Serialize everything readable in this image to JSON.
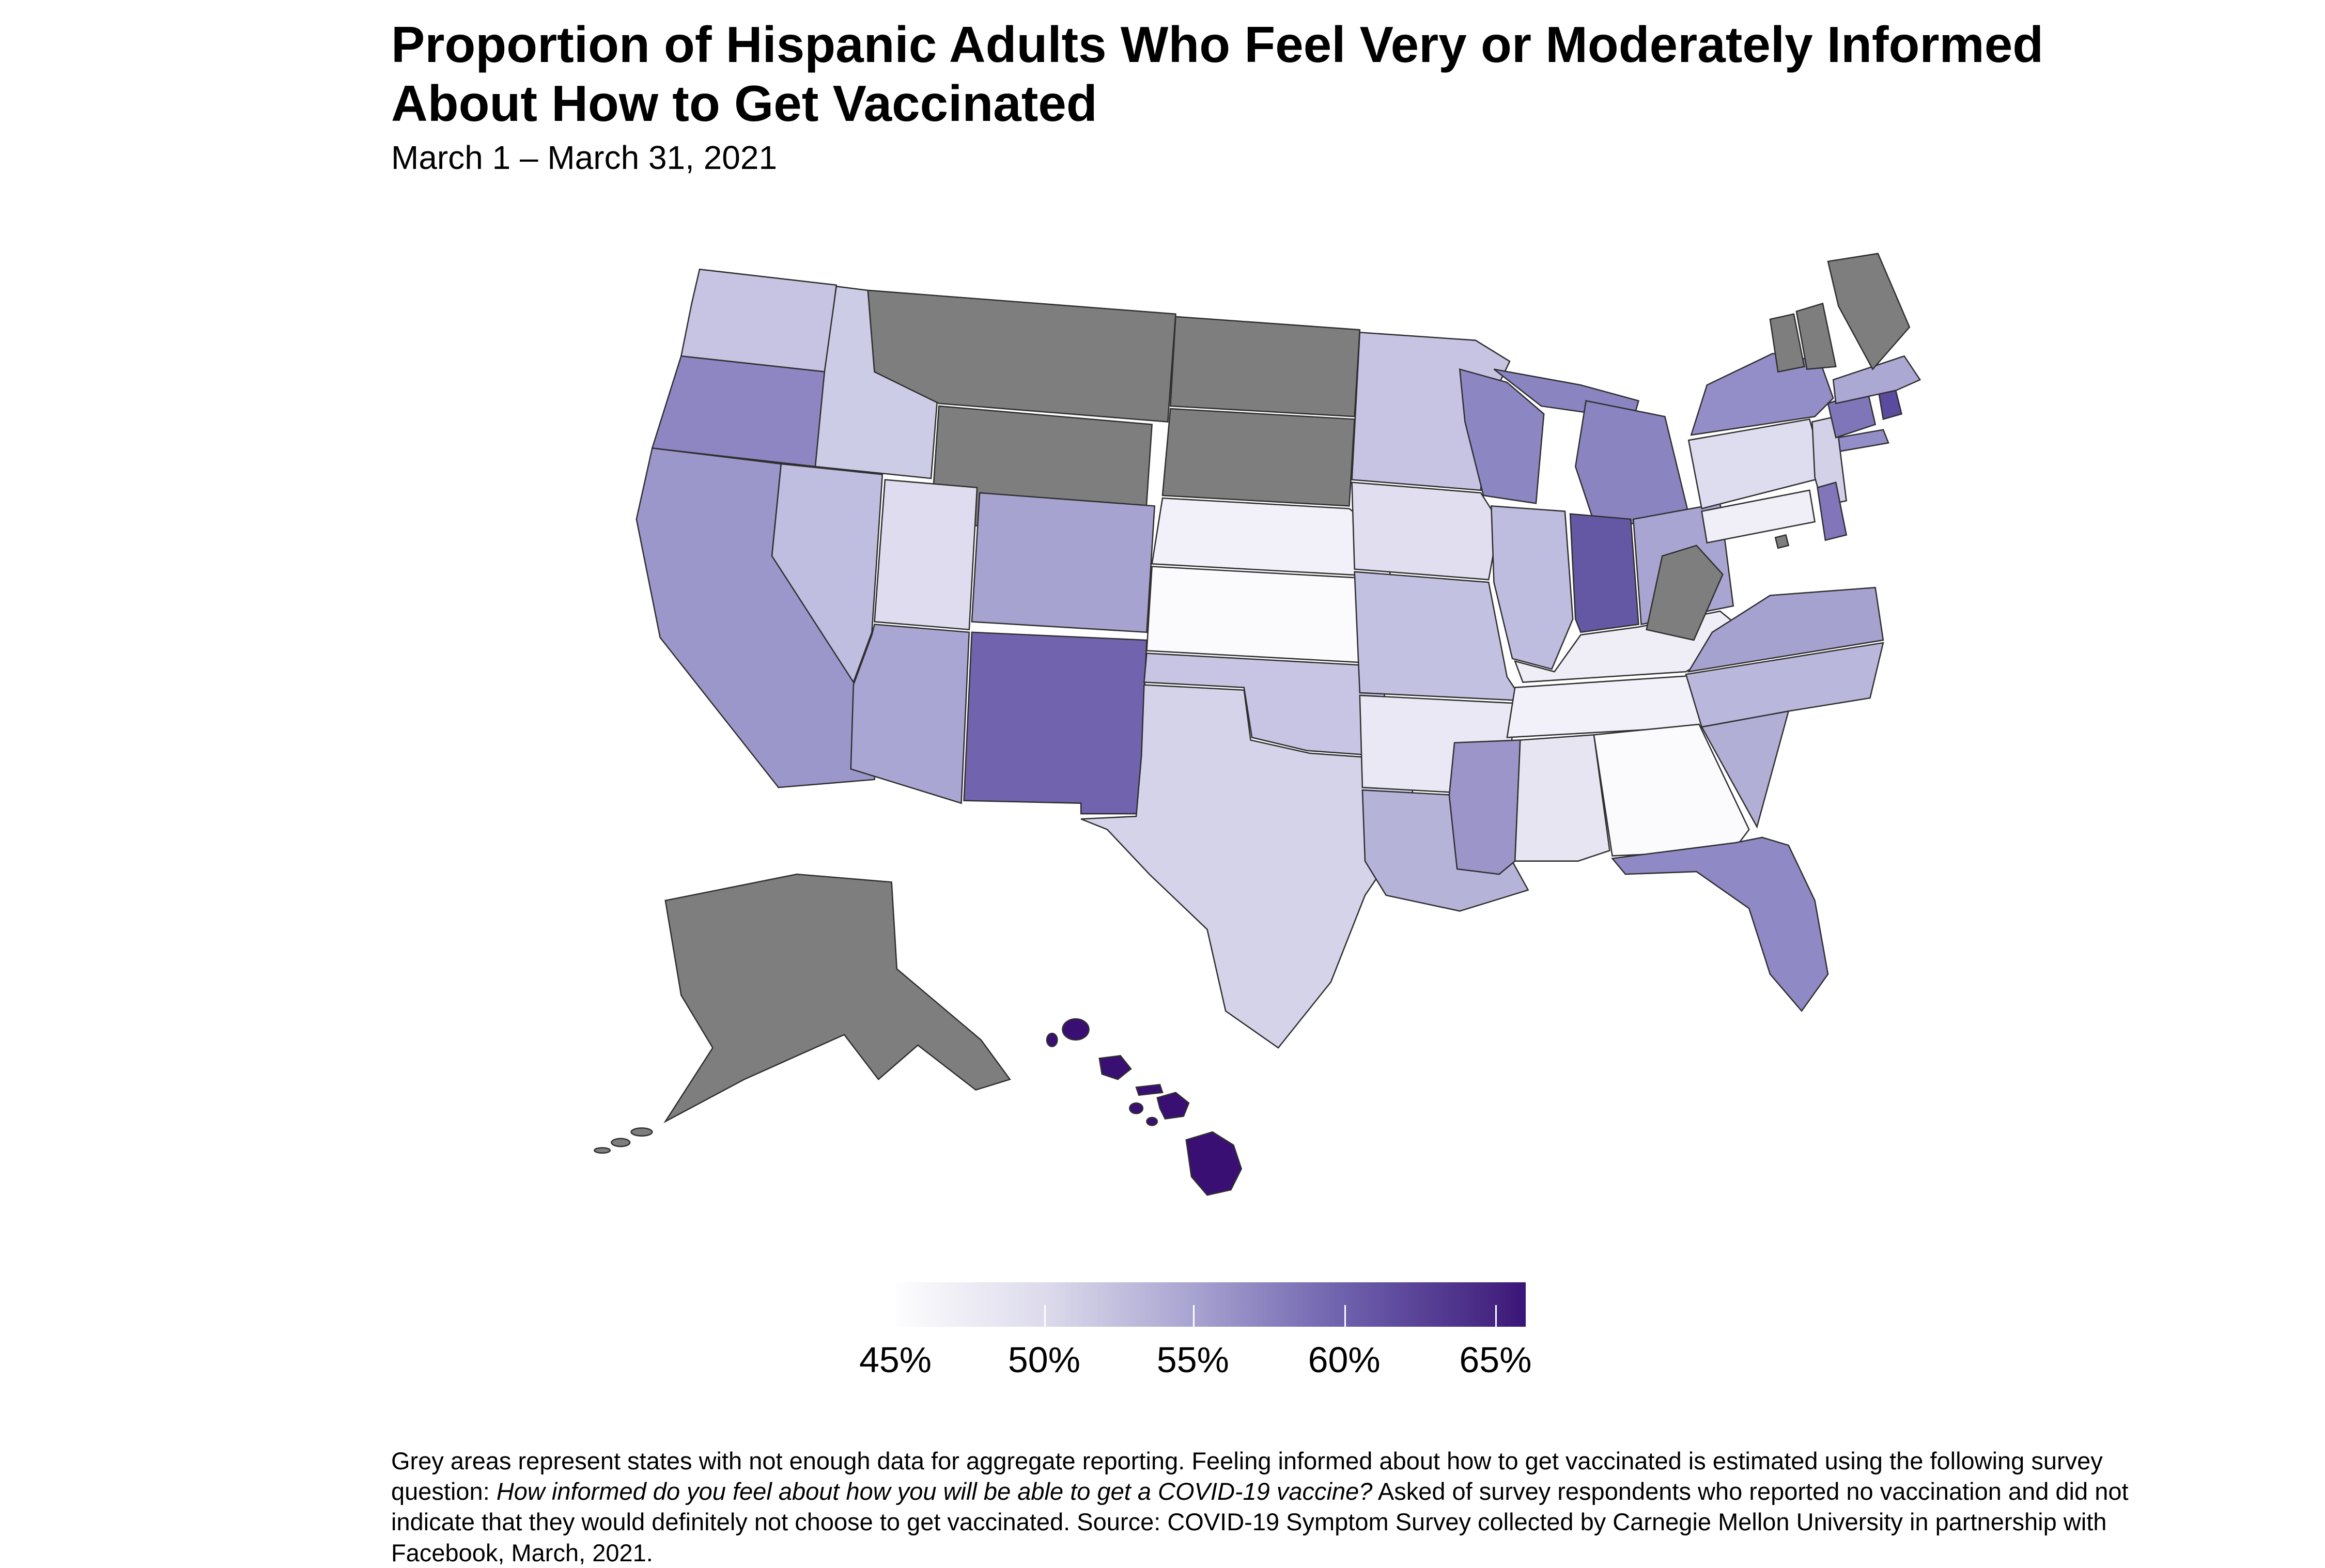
{
  "title": {
    "line1": "Proportion of Hispanic Adults Who Feel Very or Moderately Informed",
    "line2": "About How to Get Vaccinated"
  },
  "subtitle": "March 1 – March 31, 2021",
  "legend": {
    "ticks": [
      {
        "label": "45%",
        "pos": 0.0
      },
      {
        "label": "50%",
        "pos": 0.236
      },
      {
        "label": "55%",
        "pos": 0.472
      },
      {
        "label": "60%",
        "pos": 0.712
      },
      {
        "label": "65%",
        "pos": 0.952
      }
    ],
    "gradient_stops": [
      [
        0,
        "#fdfdfe"
      ],
      [
        0.24,
        "#dcdaeb"
      ],
      [
        0.47,
        "#a8a4d1"
      ],
      [
        0.71,
        "#6e61ad"
      ],
      [
        0.95,
        "#452581"
      ],
      [
        1,
        "#3a1478"
      ]
    ]
  },
  "footnote": {
    "part1": "Grey areas represent states with not enough data for aggregate reporting. Feeling informed about how to get vaccinated is estimated using the following survey question: ",
    "part2_italic": "How informed do you feel about how you will be able to get a COVID-19 vaccine?",
    "part3": " Asked of survey respondents who reported no vaccination and did not indicate that they would definitely not choose to get vaccinated. Source: COVID-19 Symptom Survey collected by Carnegie Mellon University in partnership with Facebook, March, 2021."
  },
  "chart_data": {
    "type": "choropleth",
    "geography": "United States (states)",
    "title": "Proportion of Hispanic Adults Who Feel Very or Moderately Informed About How to Get Vaccinated",
    "period": "March 1 – March 31, 2021",
    "unit": "%",
    "scale": {
      "min": 45,
      "max": 66,
      "tick_labels": [
        "45%",
        "50%",
        "55%",
        "60%",
        "65%"
      ]
    },
    "no_data_color": "#7e7e7e",
    "border_color": "#2f2f2f",
    "states": [
      {
        "abbr": "WA",
        "name": "Washington",
        "value": 51,
        "fill": "#c6c4e2"
      },
      {
        "abbr": "OR",
        "name": "Oregon",
        "value": 57,
        "fill": "#8d86c3"
      },
      {
        "abbr": "CA",
        "name": "California",
        "value": 55.5,
        "fill": "#9c97cb"
      },
      {
        "abbr": "NV",
        "name": "Nevada",
        "value": 52,
        "fill": "#bfbde0"
      },
      {
        "abbr": "ID",
        "name": "Idaho",
        "value": 50.5,
        "fill": "#cdcce6"
      },
      {
        "abbr": "UT",
        "name": "Utah",
        "value": 48.5,
        "fill": "#dedcee"
      },
      {
        "abbr": "AZ",
        "name": "Arizona",
        "value": 54.5,
        "fill": "#aaa6d3"
      },
      {
        "abbr": "NM",
        "name": "New Mexico",
        "value": 60,
        "fill": "#7163ae"
      },
      {
        "abbr": "CO",
        "name": "Colorado",
        "value": 54.5,
        "fill": "#a7a3d1"
      },
      {
        "abbr": "MT",
        "name": "Montana",
        "value": null,
        "fill": "#7e7e7e"
      },
      {
        "abbr": "WY",
        "name": "Wyoming",
        "value": null,
        "fill": "#7e7e7e"
      },
      {
        "abbr": "ND",
        "name": "North Dakota",
        "value": null,
        "fill": "#7e7e7e"
      },
      {
        "abbr": "SD",
        "name": "South Dakota",
        "value": null,
        "fill": "#7e7e7e"
      },
      {
        "abbr": "NE",
        "name": "Nebraska",
        "value": 46,
        "fill": "#f2f1f9"
      },
      {
        "abbr": "KS",
        "name": "Kansas",
        "value": 45,
        "fill": "#fbfafd"
      },
      {
        "abbr": "OK",
        "name": "Oklahoma",
        "value": 51,
        "fill": "#c7c5e3"
      },
      {
        "abbr": "TX",
        "name": "Texas",
        "value": 49.5,
        "fill": "#d5d3ea"
      },
      {
        "abbr": "MN",
        "name": "Minnesota",
        "value": 51,
        "fill": "#c6c4e2"
      },
      {
        "abbr": "IA",
        "name": "Iowa",
        "value": 48,
        "fill": "#e1dfef"
      },
      {
        "abbr": "MO",
        "name": "Missouri",
        "value": 51.5,
        "fill": "#c3c1e1"
      },
      {
        "abbr": "AR",
        "name": "Arkansas",
        "value": 47,
        "fill": "#e9e8f4"
      },
      {
        "abbr": "LA",
        "name": "Louisiana",
        "value": 53,
        "fill": "#b6b3d9"
      },
      {
        "abbr": "WI",
        "name": "Wisconsin",
        "value": 57,
        "fill": "#8c86c3"
      },
      {
        "abbr": "IL",
        "name": "Illinois",
        "value": 52,
        "fill": "#bebcdf"
      },
      {
        "abbr": "MI",
        "name": "Michigan",
        "value": 57,
        "fill": "#8a84c1"
      },
      {
        "abbr": "IN",
        "name": "Indiana",
        "value": 61,
        "fill": "#6458a5"
      },
      {
        "abbr": "OH",
        "name": "Ohio",
        "value": 54.5,
        "fill": "#a9a5d2"
      },
      {
        "abbr": "KY",
        "name": "Kentucky",
        "value": 46.5,
        "fill": "#efeef7"
      },
      {
        "abbr": "TN",
        "name": "Tennessee",
        "value": 46,
        "fill": "#f2f1f9"
      },
      {
        "abbr": "MS",
        "name": "Mississippi",
        "value": 55.5,
        "fill": "#9b95c9"
      },
      {
        "abbr": "AL",
        "name": "Alabama",
        "value": 47.5,
        "fill": "#e7e5f2"
      },
      {
        "abbr": "GA",
        "name": "Georgia",
        "value": 45,
        "fill": "#fbfafd"
      },
      {
        "abbr": "FL",
        "name": "Florida",
        "value": 57,
        "fill": "#8f89c5"
      },
      {
        "abbr": "SC",
        "name": "South Carolina",
        "value": 53.5,
        "fill": "#b2afd7"
      },
      {
        "abbr": "NC",
        "name": "North Carolina",
        "value": 52.5,
        "fill": "#b9b7db"
      },
      {
        "abbr": "VA",
        "name": "Virginia",
        "value": 54.5,
        "fill": "#a5a2d0"
      },
      {
        "abbr": "WV",
        "name": "West Virginia",
        "value": null,
        "fill": "#7e7e7e"
      },
      {
        "abbr": "MD",
        "name": "Maryland",
        "value": 46.5,
        "fill": "#f0eff8"
      },
      {
        "abbr": "DE",
        "name": "Delaware",
        "value": 58.5,
        "fill": "#8275ba"
      },
      {
        "abbr": "DC",
        "name": "District of Columbia",
        "value": null,
        "fill": "#7e7e7e"
      },
      {
        "abbr": "NJ",
        "name": "New Jersey",
        "value": 49.5,
        "fill": "#d3d1e8"
      },
      {
        "abbr": "PA",
        "name": "Pennsylvania",
        "value": 48.5,
        "fill": "#dedcef"
      },
      {
        "abbr": "NY",
        "name": "New York",
        "value": 56.5,
        "fill": "#948ec8"
      },
      {
        "abbr": "CT",
        "name": "Connecticut",
        "value": 58.5,
        "fill": "#7e76b9"
      },
      {
        "abbr": "RI",
        "name": "Rhode Island",
        "value": 62,
        "fill": "#5a4b9e"
      },
      {
        "abbr": "MA",
        "name": "Massachusetts",
        "value": 54,
        "fill": "#aca8d4"
      },
      {
        "abbr": "VT",
        "name": "Vermont",
        "value": null,
        "fill": "#7e7e7e"
      },
      {
        "abbr": "NH",
        "name": "New Hampshire",
        "value": null,
        "fill": "#7e7e7e"
      },
      {
        "abbr": "ME",
        "name": "Maine",
        "value": null,
        "fill": "#7e7e7e"
      },
      {
        "abbr": "AK",
        "name": "Alaska",
        "value": null,
        "fill": "#7e7e7e"
      },
      {
        "abbr": "HI",
        "name": "Hawaii",
        "value": 66,
        "fill": "#3a0f73"
      }
    ]
  }
}
